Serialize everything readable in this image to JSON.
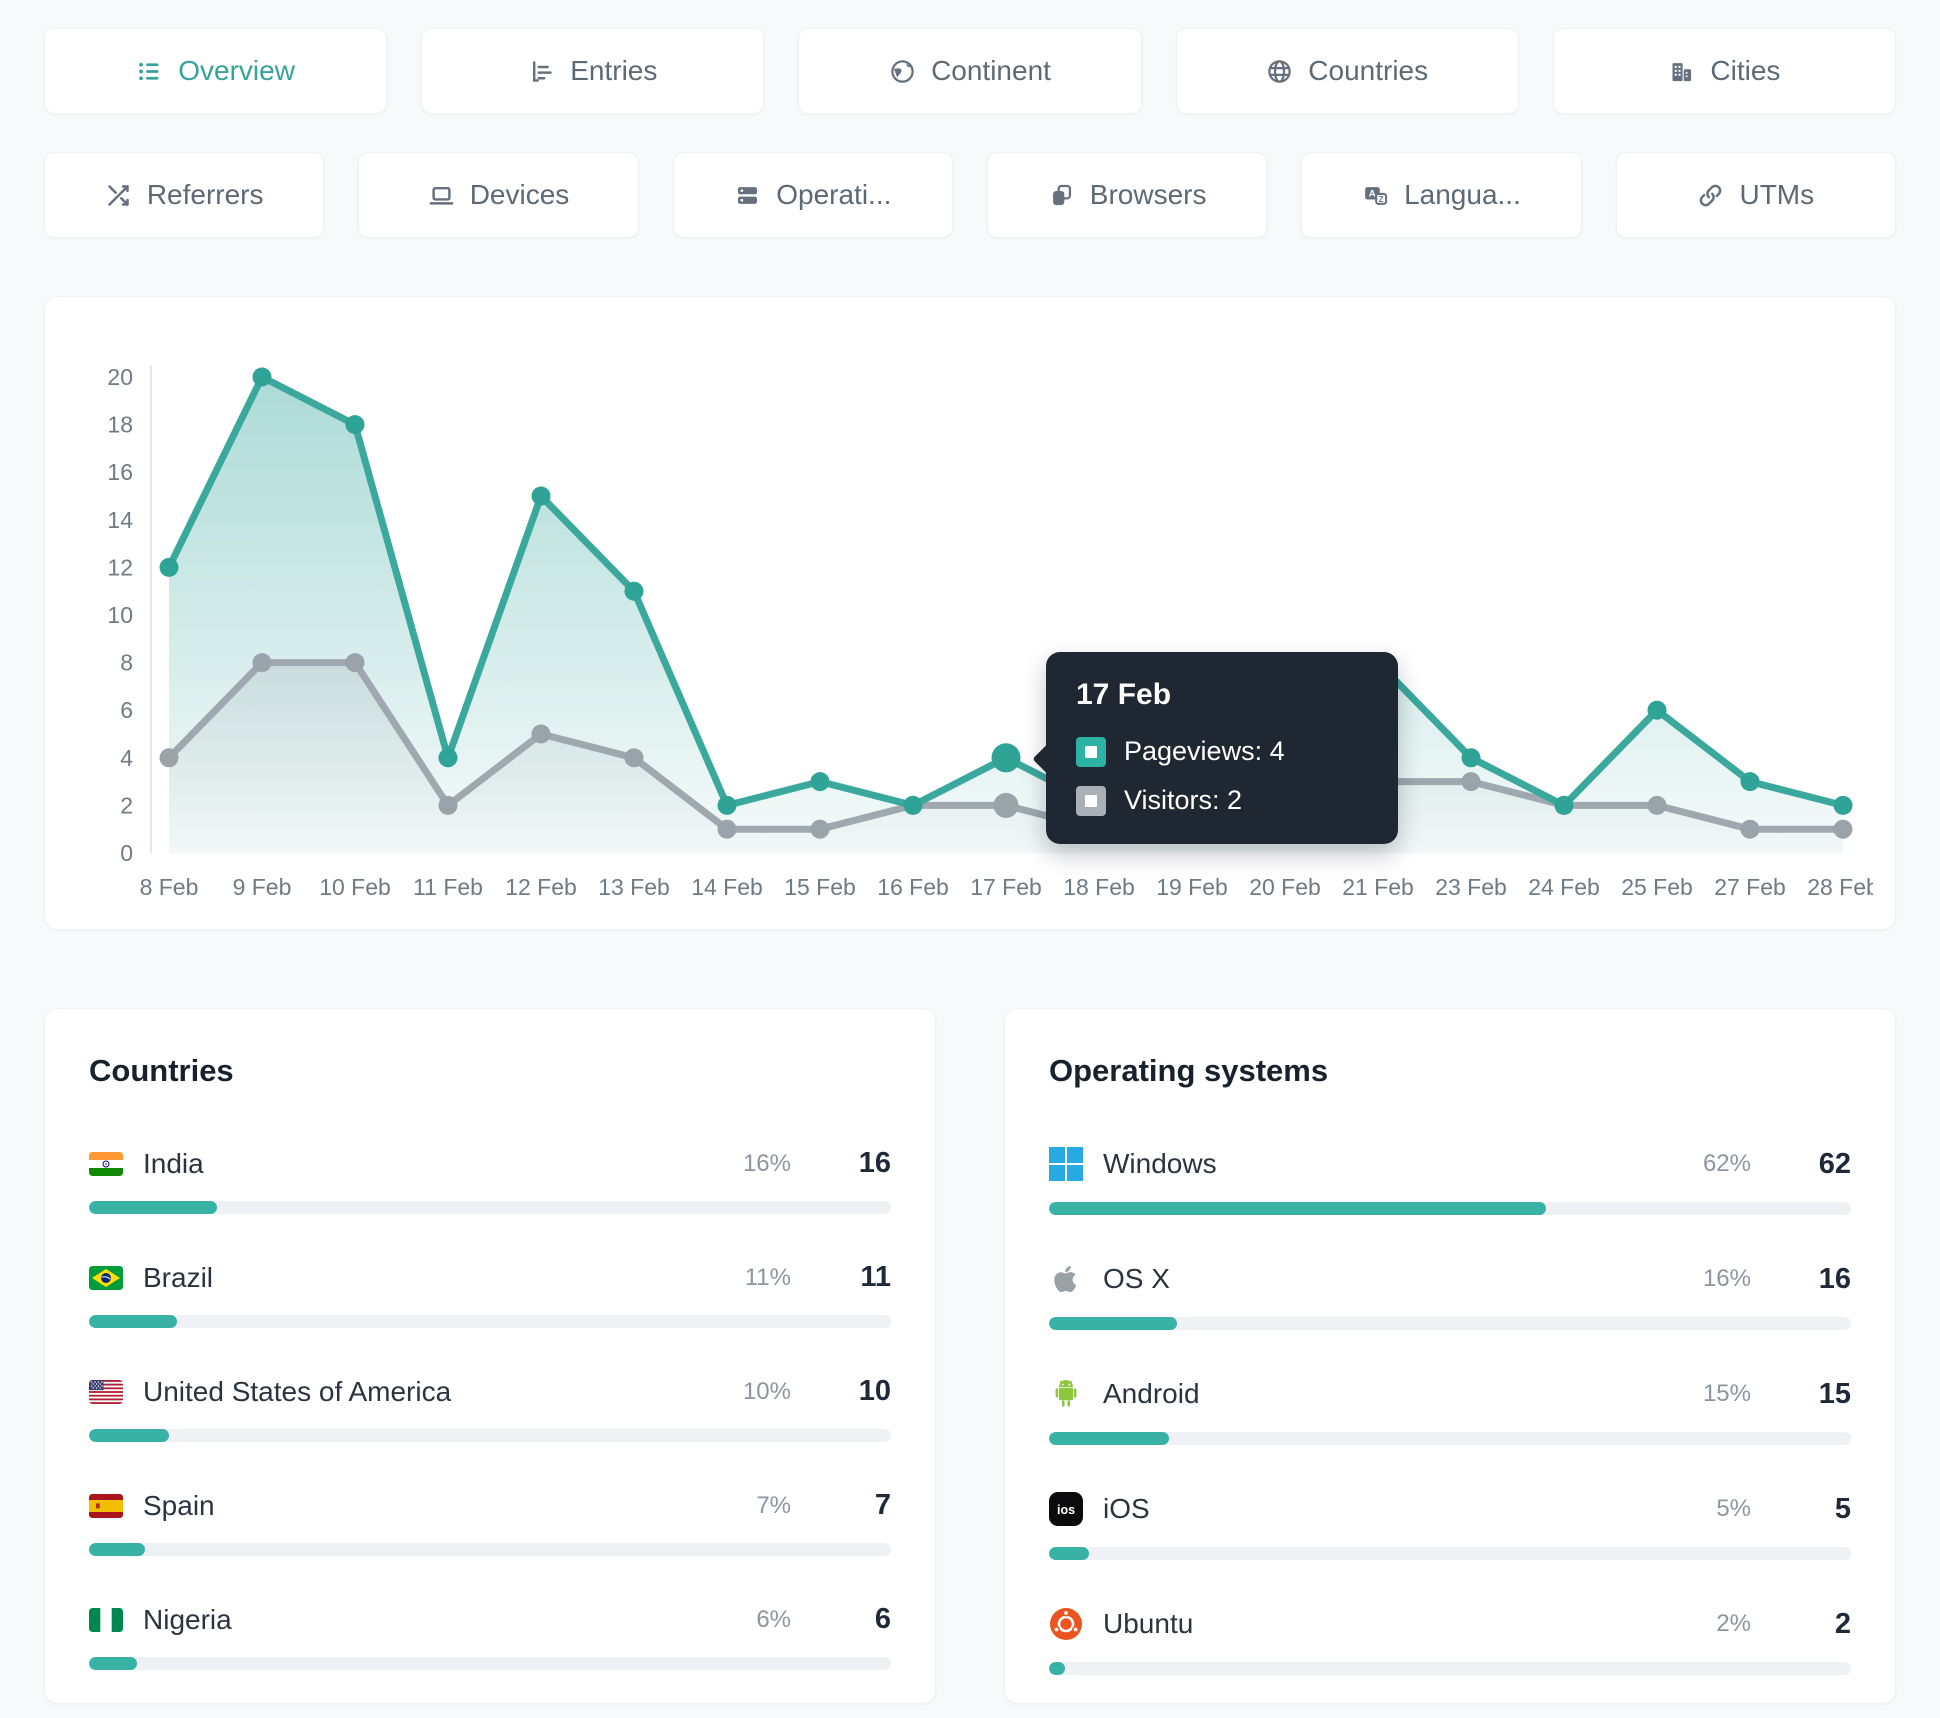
{
  "accent_color": "#35a39a",
  "tabs": {
    "row1": [
      {
        "label": "Overview",
        "active": true
      },
      {
        "label": "Entries",
        "active": false
      },
      {
        "label": "Continent",
        "active": false
      },
      {
        "label": "Countries",
        "active": false
      },
      {
        "label": "Cities",
        "active": false
      }
    ],
    "row2": [
      {
        "label": "Referrers"
      },
      {
        "label": "Devices"
      },
      {
        "label": "Operati..."
      },
      {
        "label": "Browsers"
      },
      {
        "label": "Langua..."
      },
      {
        "label": "UTMs"
      }
    ]
  },
  "chart_data": {
    "type": "line",
    "x": [
      "8 Feb",
      "9 Feb",
      "10 Feb",
      "11 Feb",
      "12 Feb",
      "13 Feb",
      "14 Feb",
      "15 Feb",
      "16 Feb",
      "17 Feb",
      "18 Feb",
      "19 Feb",
      "20 Feb",
      "21 Feb",
      "23 Feb",
      "24 Feb",
      "25 Feb",
      "27 Feb",
      "28 Feb"
    ],
    "series": [
      {
        "name": "Pageviews",
        "color": "#3aa89d",
        "dot_color": "#2fa396",
        "values": [
          12,
          20,
          18,
          4,
          15,
          11,
          2,
          3,
          2,
          4,
          2,
          3,
          3,
          8,
          4,
          2,
          6,
          3,
          2
        ]
      },
      {
        "name": "Visitors",
        "color": "#9ea8ae",
        "dot_color": "#99a3a9",
        "values": [
          4,
          8,
          8,
          2,
          5,
          4,
          1,
          1,
          2,
          2,
          1,
          2,
          3,
          3,
          3,
          2,
          2,
          1,
          1
        ]
      }
    ],
    "ylim": [
      0,
      20
    ],
    "ytick_step": 2,
    "grid": false,
    "legend_position": "none",
    "highlight_index": 9,
    "title": "",
    "xlabel": "",
    "ylabel": ""
  },
  "tooltip": {
    "title": "17 Feb",
    "rows": [
      {
        "label": "Pageviews: 4",
        "color": "#2db3a4"
      },
      {
        "label": "Visitors: 2",
        "color": "#a9b0b6"
      }
    ]
  },
  "countries": {
    "title": "Countries",
    "rows": [
      {
        "name": "India",
        "flag": "india-flag",
        "percent": 16,
        "percent_label": "16%",
        "count": "16"
      },
      {
        "name": "Brazil",
        "flag": "brazil-flag",
        "percent": 11,
        "percent_label": "11%",
        "count": "11"
      },
      {
        "name": "United States of America",
        "flag": "usa-flag",
        "percent": 10,
        "percent_label": "10%",
        "count": "10"
      },
      {
        "name": "Spain",
        "flag": "spain-flag",
        "percent": 7,
        "percent_label": "7%",
        "count": "7"
      },
      {
        "name": "Nigeria",
        "flag": "nigeria-flag",
        "percent": 6,
        "percent_label": "6%",
        "count": "6"
      }
    ]
  },
  "operating_systems": {
    "title": "Operating systems",
    "rows": [
      {
        "name": "Windows",
        "icon": "windows-icon",
        "percent": 62,
        "percent_label": "62%",
        "count": "62"
      },
      {
        "name": "OS X",
        "icon": "apple-icon",
        "percent": 16,
        "percent_label": "16%",
        "count": "16"
      },
      {
        "name": "Android",
        "icon": "android-icon",
        "percent": 15,
        "percent_label": "15%",
        "count": "15"
      },
      {
        "name": "iOS",
        "icon": "ios-icon",
        "percent": 5,
        "percent_label": "5%",
        "count": "5"
      },
      {
        "name": "Ubuntu",
        "icon": "ubuntu-icon",
        "percent": 2,
        "percent_label": "2%",
        "count": "2"
      }
    ]
  }
}
